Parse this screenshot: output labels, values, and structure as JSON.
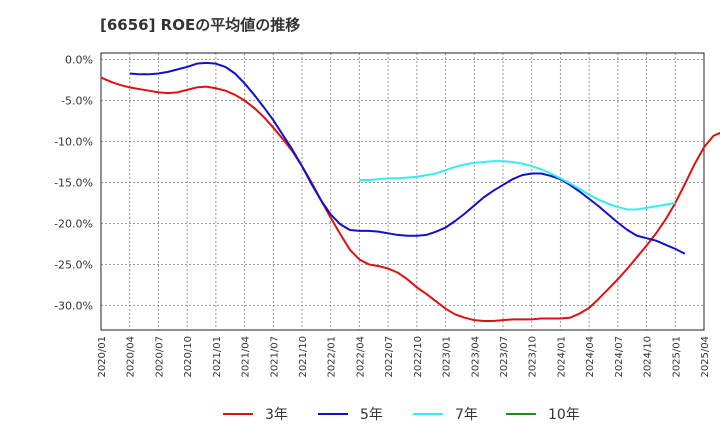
{
  "chart_data": {
    "type": "line",
    "title": "[6656]  ROEの平均値の推移",
    "xlabel": "",
    "ylabel": "",
    "ylim": [
      -33,
      0.8
    ],
    "yticks": [
      0,
      -5,
      -10,
      -15,
      -20,
      -25,
      -30
    ],
    "ytick_labels": [
      "0.0%",
      "-5.0%",
      "-10.0%",
      "-15.0%",
      "-20.0%",
      "-25.0%",
      "-30.0%"
    ],
    "x_start": "2020/01",
    "x_end": "2025/04",
    "xtick_labels": [
      "2020/01",
      "2020/04",
      "2020/07",
      "2020/10",
      "2021/01",
      "2021/04",
      "2021/07",
      "2021/10",
      "2022/01",
      "2022/04",
      "2022/07",
      "2022/10",
      "2023/01",
      "2023/04",
      "2023/07",
      "2023/10",
      "2024/01",
      "2024/04",
      "2024/07",
      "2024/10",
      "2025/01",
      "2025/04"
    ],
    "grid": true,
    "legend_position": "bottom",
    "series": [
      {
        "name": "3年",
        "color": "#dd1111",
        "start": "2020/01",
        "values": [
          -2.2,
          -2.7,
          -3.1,
          -3.4,
          -3.6,
          -3.8,
          -4.0,
          -4.1,
          -4.0,
          -3.7,
          -3.4,
          -3.3,
          -3.5,
          -3.8,
          -4.3,
          -5.0,
          -5.9,
          -7.0,
          -8.3,
          -9.7,
          -11.2,
          -13.0,
          -15.0,
          -17.2,
          -19.3,
          -21.3,
          -23.2,
          -24.4,
          -25.0,
          -25.2,
          -25.5,
          -26.0,
          -26.8,
          -27.8,
          -28.6,
          -29.5,
          -30.4,
          -31.1,
          -31.5,
          -31.8,
          -31.9,
          -31.9,
          -31.8,
          -31.7,
          -31.7,
          -31.7,
          -31.6,
          -31.6,
          -31.6,
          -31.5,
          -31.0,
          -30.3,
          -29.2,
          -28.0,
          -26.8,
          -25.5,
          -24.1,
          -22.7,
          -21.2,
          -19.5,
          -17.5,
          -15.2,
          -12.8,
          -10.7,
          -9.3,
          -8.8
        ]
      },
      {
        "name": "5年",
        "color": "#1111cc",
        "start": "2020/04",
        "values": [
          -1.7,
          -1.8,
          -1.8,
          -1.7,
          -1.5,
          -1.2,
          -0.9,
          -0.5,
          -0.4,
          -0.5,
          -0.9,
          -1.7,
          -2.9,
          -4.3,
          -5.8,
          -7.4,
          -9.2,
          -11.0,
          -13.0,
          -15.2,
          -17.2,
          -18.9,
          -20.1,
          -20.8,
          -20.9,
          -20.9,
          -21.0,
          -21.2,
          -21.4,
          -21.5,
          -21.5,
          -21.4,
          -21.0,
          -20.5,
          -19.7,
          -18.8,
          -17.8,
          -16.8,
          -16.0,
          -15.3,
          -14.6,
          -14.1,
          -13.9,
          -13.9,
          -14.2,
          -14.6,
          -15.3,
          -16.1,
          -17.0,
          -17.9,
          -18.9,
          -19.9,
          -20.8,
          -21.5,
          -21.8,
          -22.1,
          -22.6,
          -23.1,
          -23.7
        ]
      },
      {
        "name": "7年",
        "color": "#33eeee",
        "start": "2022/04",
        "values": [
          -14.7,
          -14.7,
          -14.6,
          -14.5,
          -14.5,
          -14.4,
          -14.3,
          -14.1,
          -13.9,
          -13.5,
          -13.1,
          -12.8,
          -12.6,
          -12.5,
          -12.4,
          -12.4,
          -12.5,
          -12.7,
          -13.0,
          -13.4,
          -13.9,
          -14.5,
          -15.1,
          -15.8,
          -16.5,
          -17.1,
          -17.6,
          -18.0,
          -18.3,
          -18.3,
          -18.1,
          -17.9,
          -17.7,
          -17.5
        ]
      },
      {
        "name": "10年",
        "color": "#228822",
        "start": "",
        "values": []
      }
    ]
  }
}
